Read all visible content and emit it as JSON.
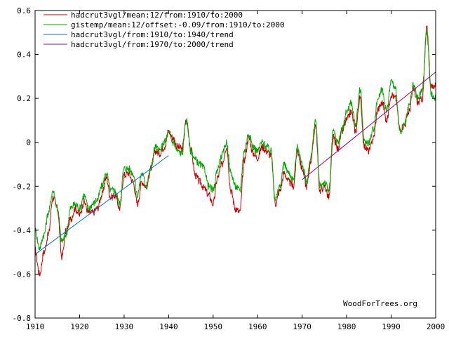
{
  "chart_data": {
    "type": "line",
    "title": "",
    "xlabel": "",
    "ylabel": "",
    "xlim": [
      1910,
      2000
    ],
    "ylim": [
      -0.8,
      0.6
    ],
    "x_ticks": [
      1910,
      1920,
      1930,
      1940,
      1950,
      1960,
      1970,
      1980,
      1990,
      2000
    ],
    "y_ticks": [
      0.6,
      0.4,
      0.2,
      0,
      -0.2,
      -0.4,
      -0.6,
      -0.8
    ],
    "grid": false,
    "legend_position": "top-left",
    "credit": "WoodForTrees.org",
    "series": [
      {
        "name": "hadcrut3vgl/mean:12/from:1910/to:2000",
        "color": "#cc0000",
        "x": [
          1910,
          1911,
          1912,
          1913,
          1914,
          1915,
          1916,
          1917,
          1918,
          1919,
          1920,
          1921,
          1922,
          1923,
          1924,
          1925,
          1926,
          1927,
          1928,
          1929,
          1930,
          1931,
          1932,
          1933,
          1934,
          1935,
          1936,
          1937,
          1938,
          1939,
          1940,
          1941,
          1942,
          1943,
          1944,
          1945,
          1946,
          1947,
          1948,
          1949,
          1950,
          1951,
          1952,
          1953,
          1954,
          1955,
          1956,
          1957,
          1958,
          1959,
          1960,
          1961,
          1962,
          1963,
          1964,
          1965,
          1966,
          1967,
          1968,
          1969,
          1970,
          1971,
          1972,
          1973,
          1974,
          1975,
          1976,
          1977,
          1978,
          1979,
          1980,
          1981,
          1982,
          1983,
          1984,
          1985,
          1986,
          1987,
          1988,
          1989,
          1990,
          1991,
          1992,
          1993,
          1994,
          1995,
          1996,
          1997,
          1998,
          1999,
          2000
        ],
        "values": [
          -0.49,
          -0.6,
          -0.5,
          -0.42,
          -0.25,
          -0.3,
          -0.52,
          -0.4,
          -0.35,
          -0.3,
          -0.33,
          -0.27,
          -0.32,
          -0.32,
          -0.3,
          -0.24,
          -0.16,
          -0.25,
          -0.24,
          -0.3,
          -0.15,
          -0.14,
          -0.18,
          -0.28,
          -0.18,
          -0.2,
          -0.12,
          -0.04,
          -0.05,
          -0.02,
          0.05,
          0.02,
          -0.02,
          -0.03,
          0.1,
          -0.03,
          -0.15,
          -0.18,
          -0.21,
          -0.24,
          -0.28,
          -0.16,
          -0.1,
          -0.02,
          -0.22,
          -0.3,
          -0.32,
          -0.08,
          0.02,
          -0.05,
          -0.07,
          -0.02,
          -0.04,
          -0.06,
          -0.28,
          -0.22,
          -0.14,
          -0.18,
          -0.2,
          -0.04,
          -0.12,
          -0.2,
          -0.08,
          0.08,
          -0.22,
          -0.2,
          -0.25,
          0.02,
          -0.03,
          0.05,
          0.1,
          0.14,
          0.05,
          0.2,
          -0.02,
          -0.04,
          0.02,
          0.15,
          0.18,
          0.1,
          0.22,
          0.2,
          0.06,
          0.08,
          0.14,
          0.24,
          0.18,
          0.2,
          0.52,
          0.25,
          0.26
        ]
      },
      {
        "name": "gistemp/mean:12/offset:-0.09/from:1910/to:2000",
        "color": "#00aa00",
        "x": [
          1910,
          1911,
          1912,
          1913,
          1914,
          1915,
          1916,
          1917,
          1918,
          1919,
          1920,
          1921,
          1922,
          1923,
          1924,
          1925,
          1926,
          1927,
          1928,
          1929,
          1930,
          1931,
          1932,
          1933,
          1934,
          1935,
          1936,
          1937,
          1938,
          1939,
          1940,
          1941,
          1942,
          1943,
          1944,
          1945,
          1946,
          1947,
          1948,
          1949,
          1950,
          1951,
          1952,
          1953,
          1954,
          1955,
          1956,
          1957,
          1958,
          1959,
          1960,
          1961,
          1962,
          1963,
          1964,
          1965,
          1966,
          1967,
          1968,
          1969,
          1970,
          1971,
          1972,
          1973,
          1974,
          1975,
          1976,
          1977,
          1978,
          1979,
          1980,
          1981,
          1982,
          1983,
          1984,
          1985,
          1986,
          1987,
          1988,
          1989,
          1990,
          1991,
          1992,
          1993,
          1994,
          1995,
          1996,
          1997,
          1998,
          1999,
          2000
        ],
        "values": [
          -0.4,
          -0.48,
          -0.42,
          -0.32,
          -0.22,
          -0.3,
          -0.45,
          -0.42,
          -0.3,
          -0.28,
          -0.3,
          -0.24,
          -0.3,
          -0.28,
          -0.26,
          -0.2,
          -0.14,
          -0.22,
          -0.22,
          -0.28,
          -0.12,
          -0.12,
          -0.14,
          -0.24,
          -0.14,
          -0.2,
          -0.12,
          -0.02,
          -0.04,
          0.0,
          0.04,
          0.0,
          -0.04,
          -0.05,
          0.1,
          -0.04,
          -0.08,
          -0.1,
          -0.12,
          -0.2,
          -0.22,
          -0.12,
          -0.06,
          0.0,
          -0.14,
          -0.2,
          -0.22,
          -0.04,
          0.04,
          -0.02,
          -0.04,
          0.0,
          -0.02,
          -0.04,
          -0.26,
          -0.2,
          -0.1,
          -0.14,
          -0.17,
          -0.02,
          -0.1,
          -0.18,
          -0.06,
          0.1,
          -0.2,
          -0.18,
          -0.22,
          0.05,
          0.0,
          0.06,
          0.14,
          0.18,
          0.08,
          0.24,
          0.0,
          0.0,
          0.06,
          0.2,
          0.24,
          0.14,
          0.28,
          0.24,
          0.04,
          0.08,
          0.16,
          0.26,
          0.2,
          0.24,
          0.5,
          0.22,
          0.2
        ]
      },
      {
        "name": "hadcrut3vgl/from:1910/to:1940/trend",
        "color": "#0077cc",
        "x": [
          1910,
          1940
        ],
        "values": [
          -0.51,
          -0.06
        ]
      },
      {
        "name": "hadcrut3vgl/from:1970/to:2000/trend",
        "color": "#990099",
        "x": [
          1970,
          2000
        ],
        "values": [
          -0.17,
          0.32
        ]
      }
    ]
  }
}
